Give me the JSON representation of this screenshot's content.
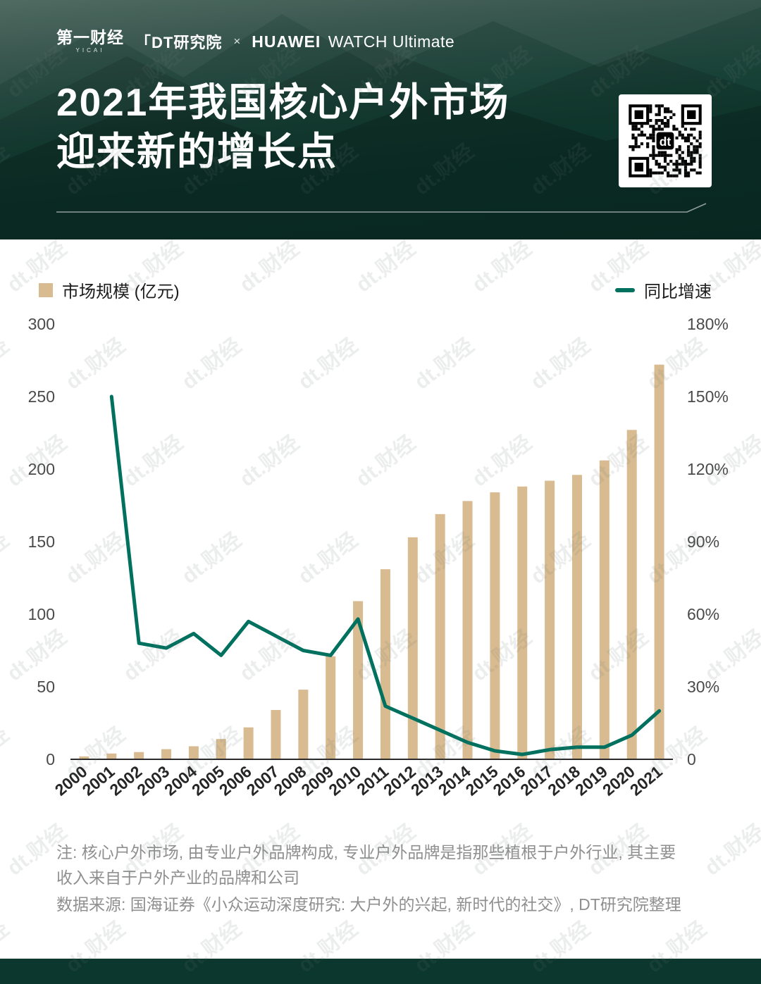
{
  "header": {
    "brand": {
      "yicai": "第一财经",
      "yicai_sub": "YICAI",
      "dt": "「DT研究院",
      "times": "×",
      "huawei": "HUAWEI",
      "product": "WATCH Ultimate"
    },
    "title_line1": "2021年我国核心户外市场",
    "title_line2": "迎来新的增长点"
  },
  "legend": {
    "bars_label": "市场规模 (亿元)",
    "line_label": "同比增速"
  },
  "chart_data": {
    "type": "bar",
    "title": "2021年我国核心户外市场迎来新的增长点",
    "categories": [
      "2000",
      "2001",
      "2002",
      "2003",
      "2004",
      "2005",
      "2006",
      "2007",
      "2008",
      "2009",
      "2010",
      "2011",
      "2012",
      "2013",
      "2014",
      "2015",
      "2016",
      "2017",
      "2018",
      "2019",
      "2020",
      "2021"
    ],
    "series": [
      {
        "name": "市场规模 (亿元)",
        "type": "bar",
        "axis": "left",
        "values": [
          2,
          4,
          5,
          7,
          9,
          14,
          22,
          34,
          48,
          71,
          109,
          131,
          153,
          169,
          178,
          184,
          188,
          192,
          196,
          206,
          227,
          272
        ]
      },
      {
        "name": "同比增速",
        "type": "line",
        "axis": "right",
        "values": [
          null,
          150,
          48,
          46,
          52,
          43,
          57,
          51,
          45,
          43,
          58,
          22,
          17,
          12,
          7,
          3.5,
          2,
          4,
          5,
          5,
          10,
          20
        ]
      }
    ],
    "left_axis": {
      "label": "市场规模 (亿元)",
      "ticks": [
        0,
        50,
        100,
        150,
        200,
        250,
        300
      ],
      "max": 300
    },
    "right_axis": {
      "label": "同比增速",
      "ticks": [
        "0",
        "30%",
        "60%",
        "90%",
        "120%",
        "150%",
        "180%"
      ],
      "max": 180
    },
    "grid": false,
    "legend_position": "top"
  },
  "notes": {
    "note_line1": "注: 核心户外市场, 由专业户外品牌构成, 专业户外品牌是指那些植根于户外行业, 其主要",
    "note_line2": "收入来自于户外产业的品牌和公司",
    "source_line": "数据来源: 国海证券《小众运动深度研究: 大户外的兴起, 新时代的社交》, DT研究院整理"
  },
  "watermark": "dt.财经",
  "qr_center_label": "dt",
  "colors": {
    "bar": "#D8BB90",
    "line": "#00705F",
    "header_bg": "#0D3A30",
    "footer_bg": "#0C372E",
    "axis": "#2B2B2B"
  }
}
